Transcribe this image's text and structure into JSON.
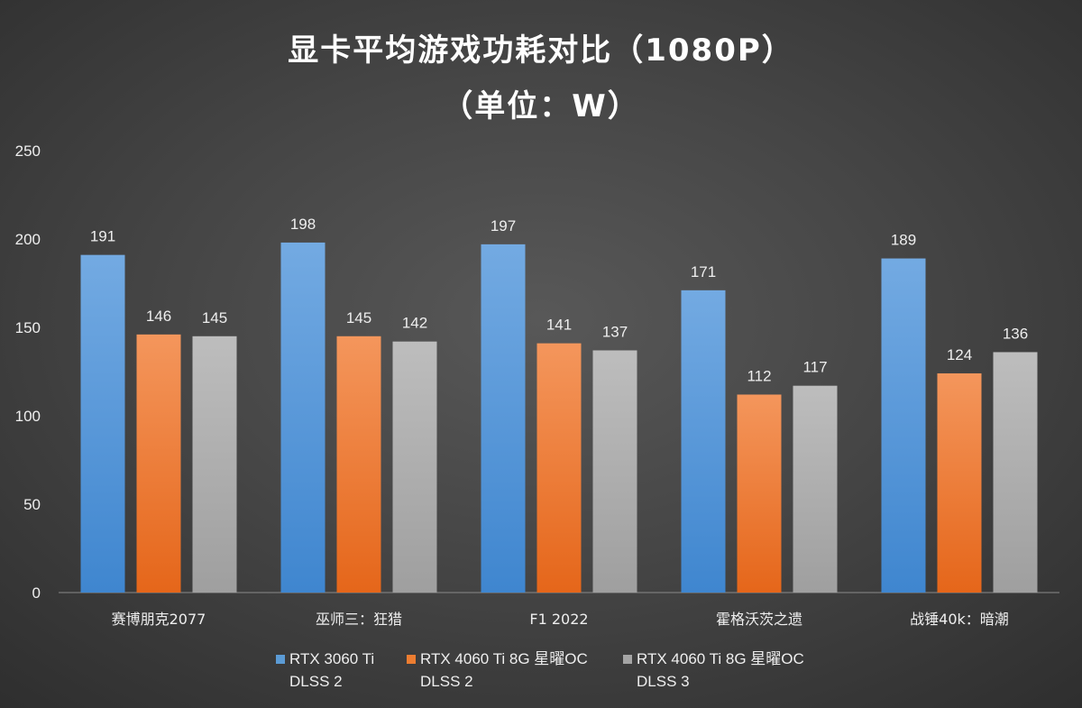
{
  "chart_data": {
    "type": "bar",
    "title": "显卡平均游戏功耗对比（1080P）",
    "subtitle": "（单位：W）",
    "categories": [
      "赛博朋克2077",
      "巫师三：狂猎",
      "F1 2022",
      "霍格沃茨之遗",
      "战锤40k：暗潮"
    ],
    "series": [
      {
        "name": "RTX 3060 Ti DLSS 2",
        "name_lines": [
          "RTX 3060 Ti",
          "DLSS 2"
        ],
        "color": "#5b9bd5",
        "values": [
          191,
          198,
          197,
          171,
          189
        ]
      },
      {
        "name": "RTX 4060 Ti 8G 星曜OC DLSS 2",
        "name_lines": [
          "RTX 4060 Ti 8G 星曜OC",
          "DLSS 2"
        ],
        "color": "#ed7d31",
        "values": [
          146,
          145,
          141,
          112,
          124
        ]
      },
      {
        "name": "RTX 4060 Ti 8G 星曜OC DLSS 3",
        "name_lines": [
          "RTX 4060 Ti 8G 星曜OC",
          "DLSS 3"
        ],
        "color": "#a5a5a5",
        "values": [
          145,
          142,
          137,
          117,
          136
        ]
      }
    ],
    "ylim": [
      0,
      250
    ],
    "yticks": [
      0,
      50,
      100,
      150,
      200,
      250
    ],
    "grid": false,
    "data_labels": true,
    "legend_position": "bottom"
  }
}
